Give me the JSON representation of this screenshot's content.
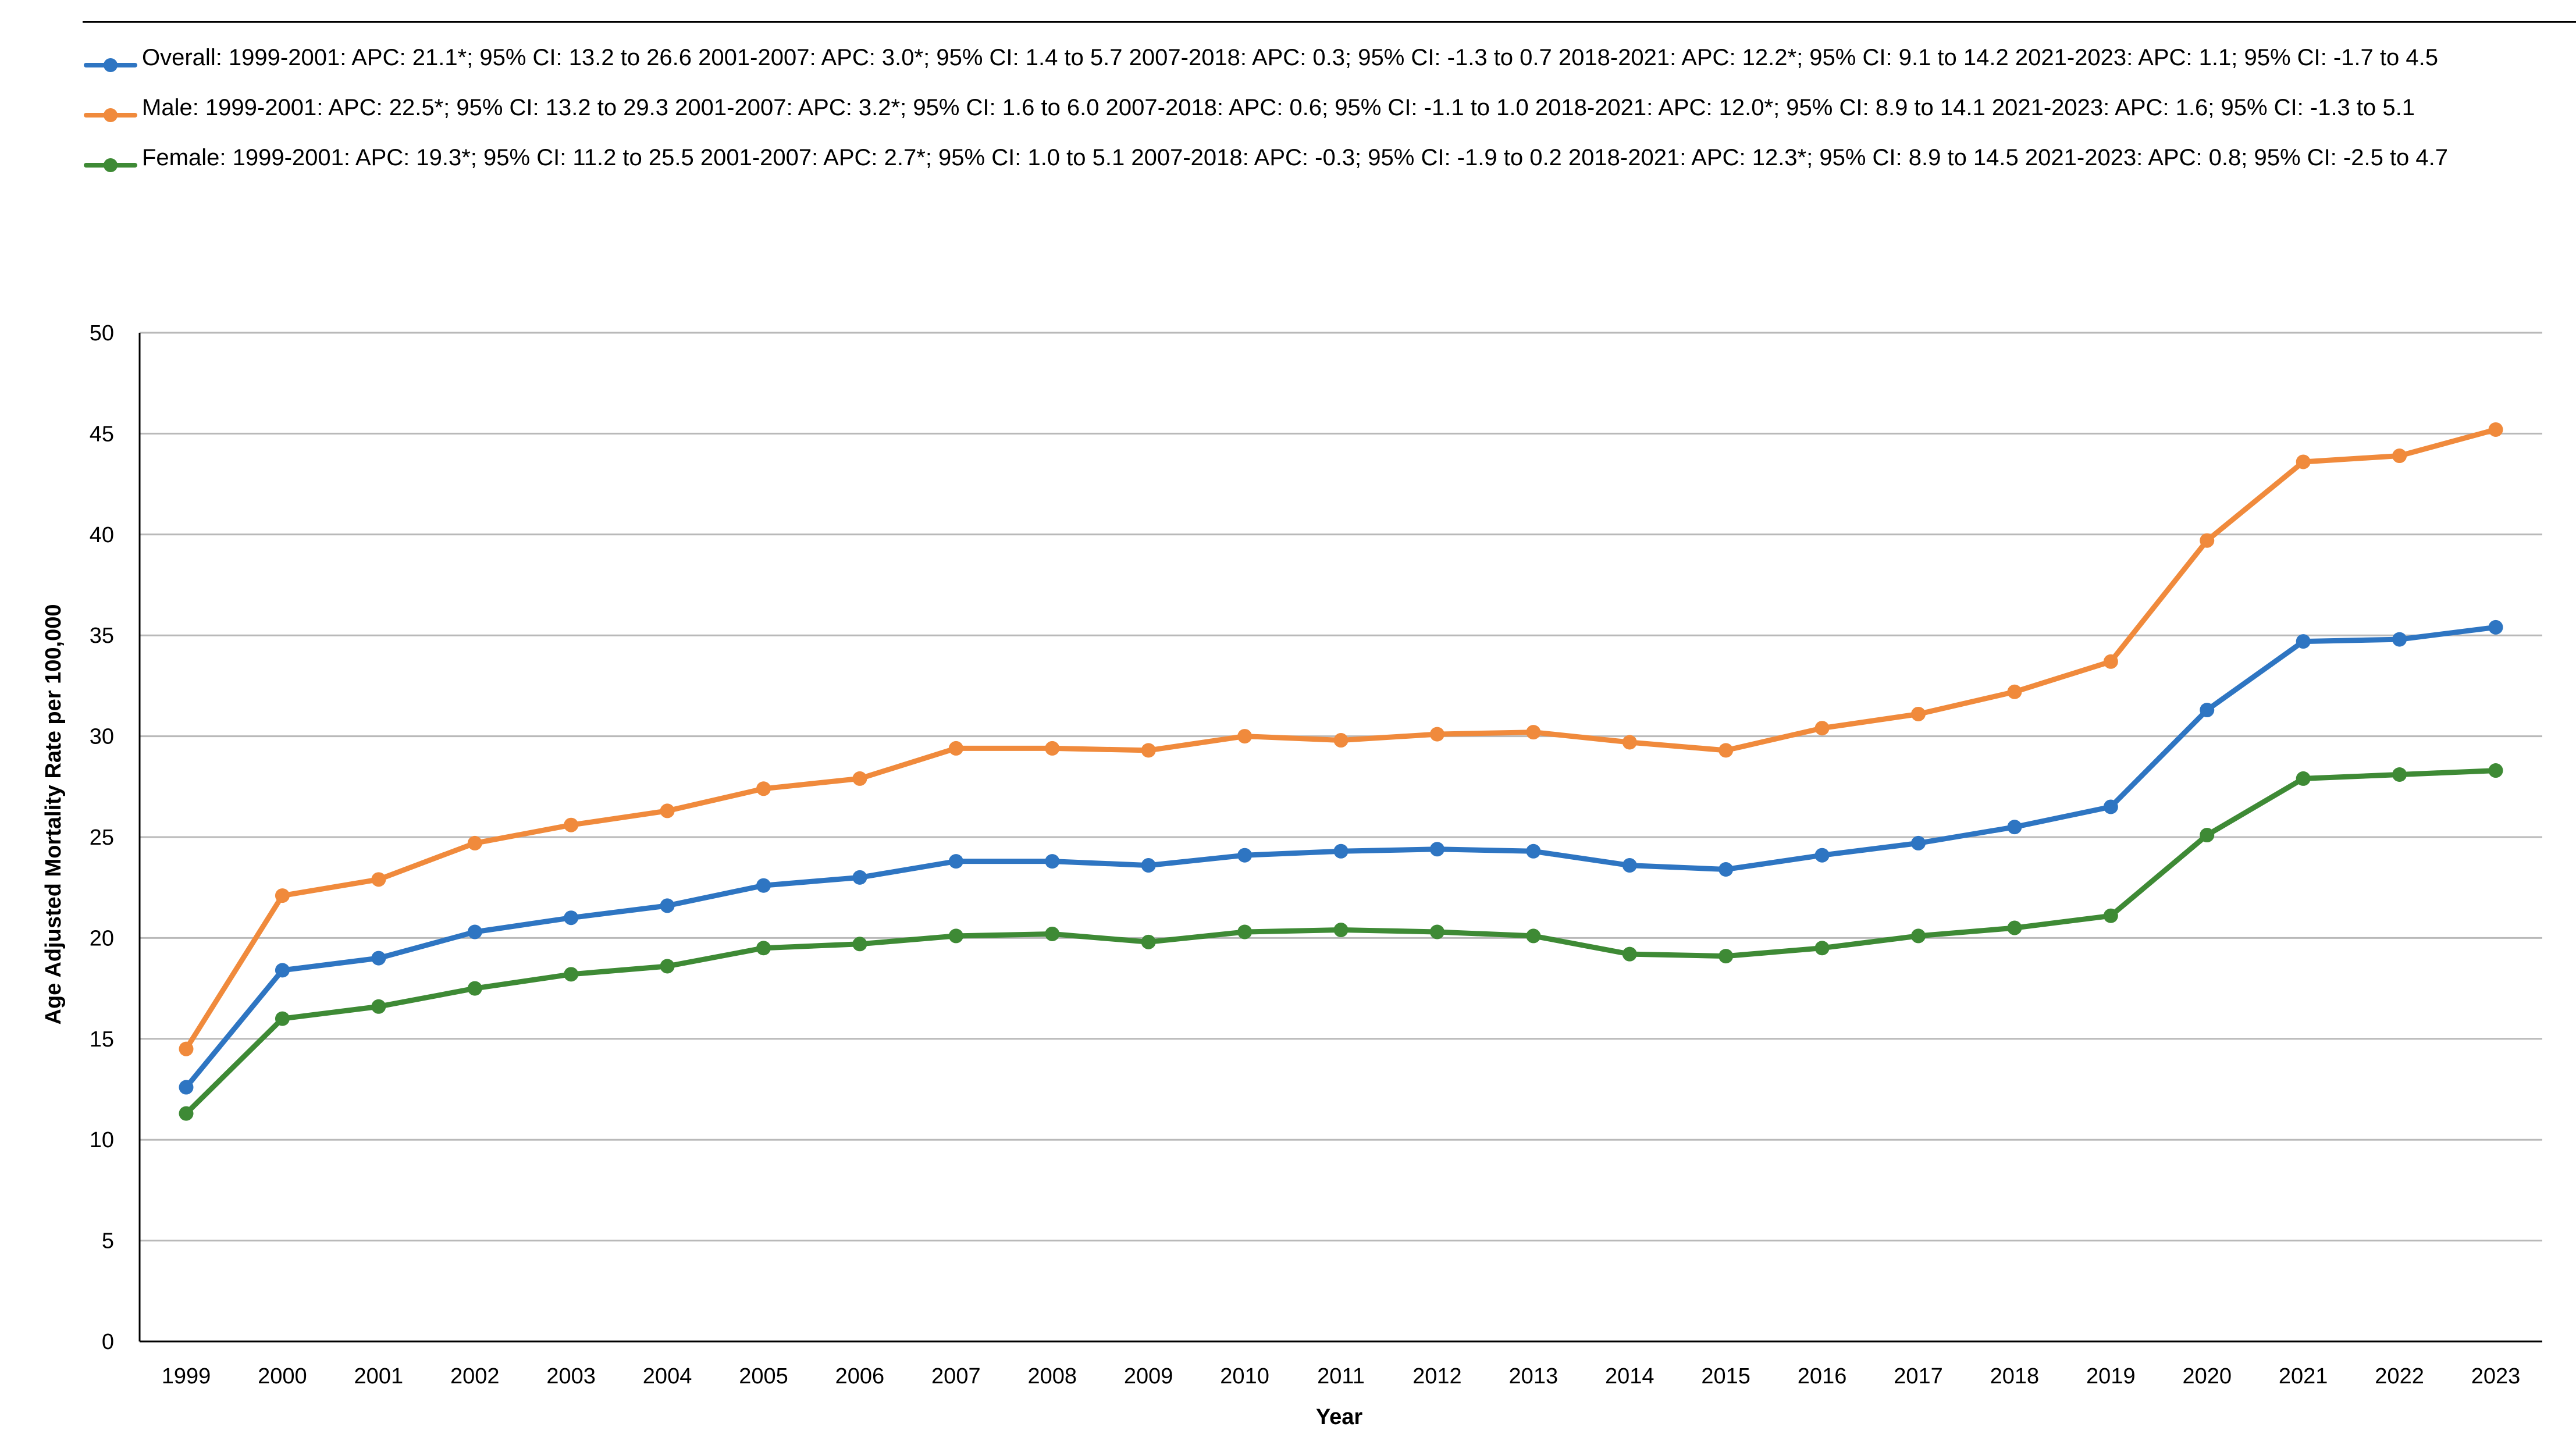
{
  "chart_data": {
    "type": "line",
    "title": "",
    "xlabel": "Year",
    "ylabel": "Age Adjusted Mortality Rate per 100,000",
    "ylim": [
      0,
      50
    ],
    "ytick_step": 5,
    "yticks": [
      "0",
      "5",
      "10",
      "15",
      "20",
      "25",
      "30",
      "35",
      "40",
      "45",
      "50"
    ],
    "grid": "horizontal",
    "legend_position": "top",
    "x": [
      "1999",
      "2000",
      "2001",
      "2002",
      "2003",
      "2004",
      "2005",
      "2006",
      "2007",
      "2008",
      "2009",
      "2010",
      "2011",
      "2012",
      "2013",
      "2014",
      "2015",
      "2016",
      "2017",
      "2018",
      "2019",
      "2020",
      "2021",
      "2022",
      "2023"
    ],
    "series": [
      {
        "name": "Overall",
        "legend": "Overall: 1999-2001: APC: 21.1*; 95% CI: 13.2 to 26.6 2001-2007: APC: 3.0*; 95% CI: 1.4 to 5.7 2007-2018: APC: 0.3; 95% CI: -1.3 to 0.7 2018-2021: APC: 12.2*; 95% CI: 9.1 to 14.2 2021-2023: APC: 1.1; 95% CI: -1.7 to 4.5",
        "color": "#2e75c2",
        "values": [
          12.6,
          18.4,
          19.0,
          20.3,
          21.0,
          21.6,
          22.6,
          23.0,
          23.8,
          23.8,
          23.6,
          24.1,
          24.3,
          24.4,
          24.3,
          23.6,
          23.4,
          24.1,
          24.7,
          25.5,
          26.5,
          31.3,
          34.7,
          34.8,
          35.4
        ]
      },
      {
        "name": "Male",
        "legend": "Male: 1999-2001: APC: 22.5*; 95% CI: 13.2 to 29.3 2001-2007: APC: 3.2*; 95% CI: 1.6 to 6.0 2007-2018: APC: 0.6; 95% CI: -1.1 to 1.0 2018-2021: APC: 12.0*; 95% CI: 8.9 to 14.1 2021-2023: APC: 1.6; 95% CI: -1.3 to 5.1",
        "color": "#f08a3c",
        "values": [
          14.5,
          22.1,
          22.9,
          24.7,
          25.6,
          26.3,
          27.4,
          27.9,
          29.4,
          29.4,
          29.3,
          30.0,
          29.8,
          30.1,
          30.2,
          29.7,
          29.3,
          30.4,
          31.1,
          32.2,
          33.7,
          39.7,
          43.6,
          43.9,
          45.2
        ]
      },
      {
        "name": "Female",
        "legend": "Female: 1999-2001: APC: 19.3*; 95% CI: 11.2 to 25.5 2001-2007: APC: 2.7*; 95% CI: 1.0 to 5.1 2007-2018: APC: -0.3; 95% CI: -1.9 to 0.2 2018-2021: APC: 12.3*; 95% CI: 8.9 to 14.5 2021-2023: APC: 0.8; 95% CI: -2.5 to 4.7",
        "color": "#3e8a35",
        "values": [
          11.3,
          16.0,
          16.6,
          17.5,
          18.2,
          18.6,
          19.5,
          19.7,
          20.1,
          20.2,
          19.8,
          20.3,
          20.4,
          20.3,
          20.1,
          19.2,
          19.1,
          19.5,
          20.1,
          20.5,
          21.1,
          25.1,
          27.9,
          28.1,
          28.3
        ]
      }
    ]
  }
}
